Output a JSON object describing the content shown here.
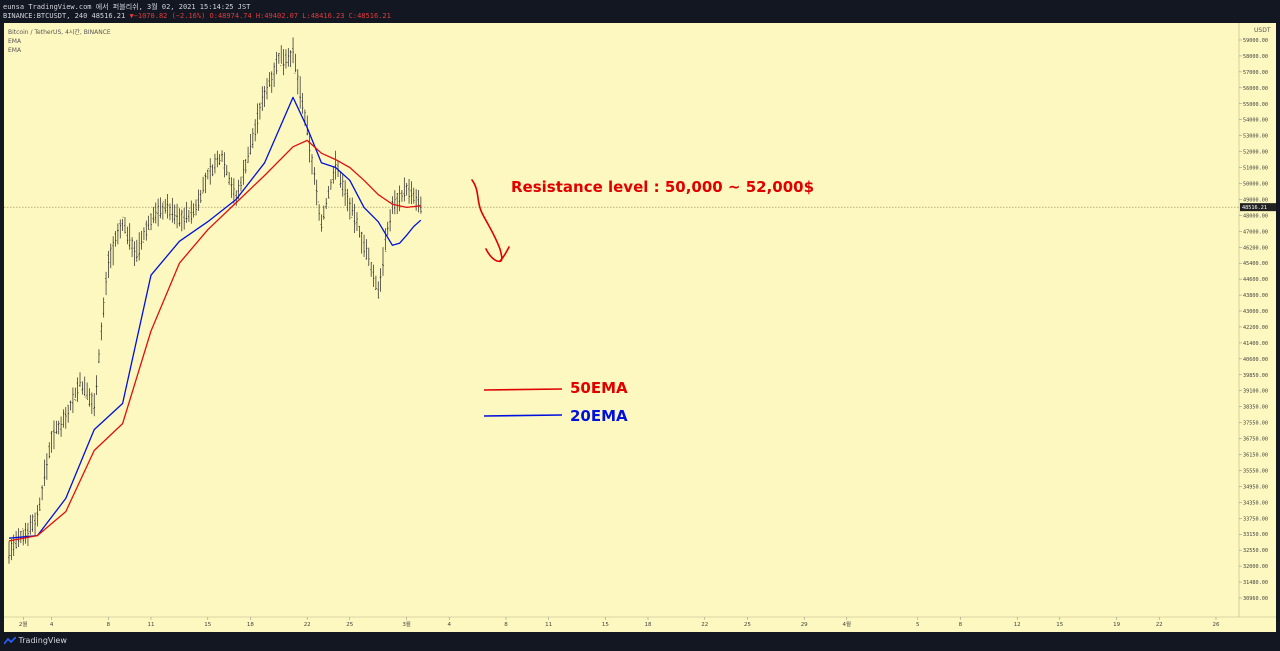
{
  "header": {
    "line1": "eunsa TradingView.com 에서 퍼블리쉬, 3월 02, 2021 15:14:25 JST",
    "line2_prefix": "BINANCE:BTCUSDT, 240 48516.21",
    "change": "−1070.82 (−2.16%)",
    "o": "O:48974.74",
    "h": "H:49402.07",
    "l": "L:48416.23",
    "c": "C:48516.21",
    "up_color": "#e23b3b"
  },
  "legend": {
    "symbol": "Bitcoin / TetherUS, 4시간, BINANCE",
    "ind1": "EMA",
    "ind2": "EMA"
  },
  "footer": {
    "brand": "TradingView",
    "icon": "tradingview-logo-icon"
  },
  "chart_data": {
    "type": "line",
    "title": "Bitcoin / TetherUS, 4시간, BINANCE",
    "currency": "USDT",
    "last_price": 48516.21,
    "last_price_label": "48516.21",
    "yrange": [
      30600,
      59500
    ],
    "grid": false,
    "y_ticks": [
      "59000.00",
      "58000.00",
      "57000.00",
      "56000.00",
      "55000.00",
      "54000.00",
      "53000.00",
      "52000.00",
      "51000.00",
      "50000.00",
      "49000.00",
      "48000.00",
      "47000.00",
      "46200.00",
      "45400.00",
      "44600.00",
      "43800.00",
      "43000.00",
      "42200.00",
      "41400.00",
      "40600.00",
      "39850.00",
      "39100.00",
      "38350.00",
      "37550.00",
      "36750.00",
      "36150.00",
      "35550.00",
      "34950.00",
      "34350.00",
      "33750.00",
      "33150.00",
      "32550.00",
      "32000.00",
      "31480.00",
      "30960.00"
    ],
    "x_ticks": [
      "2월",
      "4",
      "8",
      "11",
      "15",
      "18",
      "22",
      "25",
      "3월",
      "4",
      "8",
      "11",
      "15",
      "18",
      "22",
      "25",
      "29",
      "4월",
      "5",
      "8",
      "12",
      "15",
      "19",
      "22",
      "26"
    ],
    "x_tick_days": [
      1,
      3,
      7,
      10,
      14,
      17,
      21,
      24,
      28,
      31,
      35,
      38,
      42,
      45,
      49,
      52,
      56,
      59,
      64,
      67,
      71,
      74,
      78,
      81,
      85
    ],
    "series": [
      {
        "name": "price",
        "color": "#222222",
        "days": [
          0,
          1,
          2,
          3,
          4,
          5,
          6,
          7,
          8,
          9,
          10,
          11,
          12,
          13,
          14,
          15,
          16,
          17,
          18,
          19,
          20,
          21,
          22,
          23,
          24,
          25,
          26,
          27,
          28,
          29
        ],
        "values": [
          32500,
          33100,
          33800,
          36800,
          37900,
          39500,
          38400,
          45500,
          47500,
          45800,
          47800,
          48600,
          47800,
          48200,
          50500,
          51800,
          49000,
          52300,
          55700,
          57800,
          58100,
          53300,
          47500,
          51200,
          48600,
          46300,
          44000,
          48600,
          49700,
          48516
        ]
      },
      {
        "name": "20EMA",
        "color": "#0011dd",
        "days": [
          0,
          2,
          4,
          6,
          8,
          10,
          12,
          14,
          16,
          18,
          20,
          21,
          22,
          23,
          24,
          25,
          26,
          27,
          27.5,
          28,
          28.5,
          29
        ],
        "values": [
          33000,
          33100,
          34500,
          37200,
          38500,
          44800,
          46500,
          47600,
          49000,
          51300,
          55400,
          53500,
          51300,
          51000,
          50200,
          48500,
          47600,
          46300,
          46400,
          46800,
          47300,
          47700
        ]
      },
      {
        "name": "50EMA",
        "color": "#dd1111",
        "days": [
          0,
          2,
          4,
          6,
          8,
          10,
          12,
          14,
          16,
          18,
          20,
          21,
          22,
          23,
          24,
          25,
          26,
          27,
          28,
          29
        ],
        "values": [
          32900,
          33100,
          34000,
          36300,
          37500,
          42000,
          45400,
          47100,
          48800,
          50500,
          52300,
          52700,
          51900,
          51500,
          51000,
          50200,
          49300,
          48700,
          48500,
          48600
        ]
      }
    ],
    "annotations": [
      {
        "text": "Resistance level : 50,000 ~ 52,000$",
        "color": "#e00000"
      },
      {
        "text": "50EMA",
        "color": "#e00000"
      },
      {
        "text": "20EMA",
        "color": "#0011dd"
      }
    ]
  }
}
